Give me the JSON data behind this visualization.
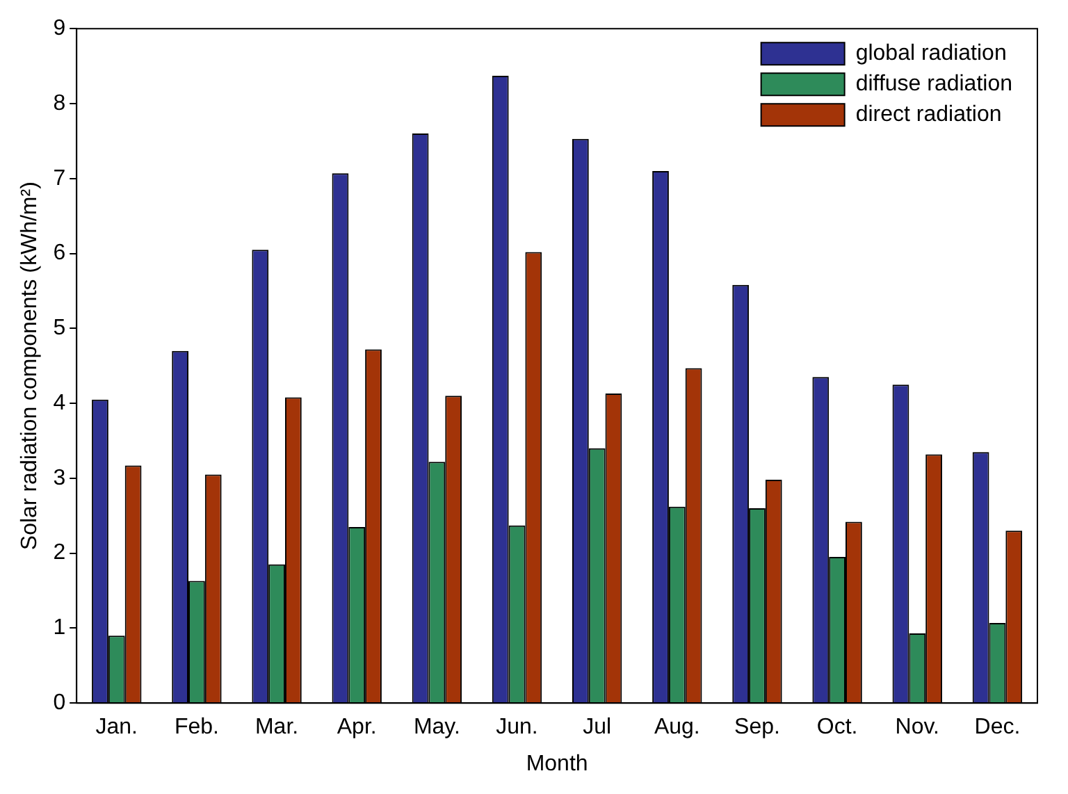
{
  "chart_data": {
    "type": "bar",
    "xlabel": "Month",
    "ylabel": "Solar radiation components (kWh/m²)",
    "categories": [
      "Jan.",
      "Feb.",
      "Mar.",
      "Apr.",
      "May.",
      "Jun.",
      "Jul",
      "Aug.",
      "Sep.",
      "Oct.",
      "Nov.",
      "Dec."
    ],
    "series": [
      {
        "name": "global radiation",
        "color": "#2e3192",
        "values": [
          4.05,
          4.7,
          6.05,
          7.07,
          7.6,
          8.37,
          7.53,
          7.1,
          5.58,
          4.35,
          4.25,
          3.35
        ]
      },
      {
        "name": "diffuse radiation",
        "color": "#2e8b5a",
        "values": [
          0.9,
          1.63,
          1.85,
          2.35,
          3.22,
          2.37,
          3.4,
          2.62,
          2.6,
          1.95,
          0.93,
          1.07
        ]
      },
      {
        "name": "direct radiation",
        "color": "#a33408",
        "values": [
          3.17,
          3.05,
          4.08,
          4.72,
          4.1,
          6.02,
          4.13,
          4.47,
          2.98,
          2.42,
          3.32,
          2.3
        ]
      }
    ],
    "ylim": [
      0,
      9
    ],
    "yticks": [
      0,
      1,
      2,
      3,
      4,
      5,
      6,
      7,
      8,
      9
    ],
    "grid": false,
    "legend": "top right"
  }
}
